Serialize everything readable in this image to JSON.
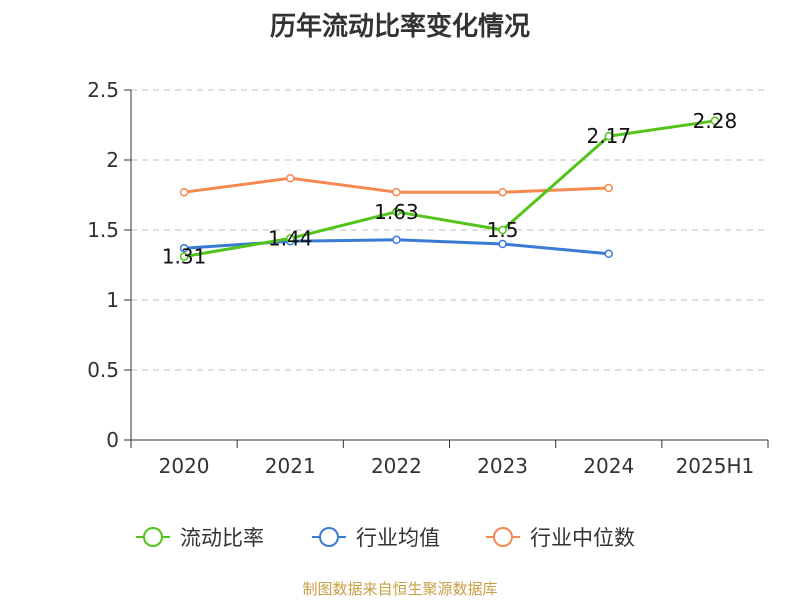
{
  "chart_data": {
    "type": "line",
    "title": "历年流动比率变化情况",
    "categories": [
      "2020",
      "2021",
      "2022",
      "2023",
      "2024",
      "2025H1"
    ],
    "ylim": [
      0,
      2.5
    ],
    "yticks": [
      "0",
      "0.5",
      "1",
      "1.5",
      "2",
      "2.5"
    ],
    "grid": true,
    "legend_position": "bottom",
    "series": [
      {
        "name": "流动比率",
        "color": "#52c41a",
        "values": [
          1.31,
          1.44,
          1.63,
          1.5,
          2.17,
          2.28
        ],
        "data_labels": [
          "1.31",
          "1.44",
          "1.63",
          "1.5",
          "2.17",
          "2.28"
        ]
      },
      {
        "name": "行业均值",
        "color": "#3a7bd5",
        "values": [
          1.37,
          1.42,
          1.43,
          1.4,
          1.33,
          null
        ]
      },
      {
        "name": "行业中位数",
        "color": "#f5894f",
        "values": [
          1.77,
          1.87,
          1.77,
          1.77,
          1.8,
          null
        ]
      }
    ]
  },
  "footer": "制图数据来自恒生聚源数据库"
}
